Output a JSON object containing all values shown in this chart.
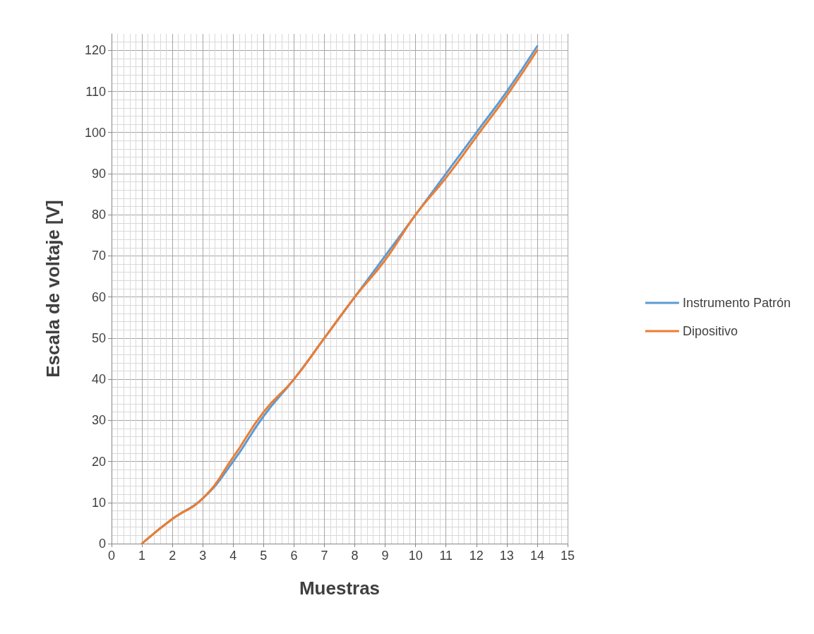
{
  "chart_data": {
    "type": "line",
    "xlabel": "Muestras",
    "ylabel": "Escala de voltaje [V]",
    "x": [
      1,
      2,
      3,
      4,
      5,
      6,
      7,
      8,
      9,
      10,
      11,
      12,
      13,
      14
    ],
    "series": [
      {
        "name": "Instrumento Patrón",
        "color": "#5b9bd5",
        "values": [
          0,
          6,
          11,
          20,
          31,
          40,
          50,
          60,
          70,
          80,
          90,
          100,
          110,
          121
        ]
      },
      {
        "name": "Dipositivo",
        "color": "#ed7d31",
        "values": [
          0,
          6,
          11,
          21,
          32,
          40,
          50,
          60,
          69,
          80,
          89,
          99,
          109,
          120
        ]
      }
    ],
    "xlim": [
      0,
      15
    ],
    "xticks": [
      0,
      1,
      2,
      3,
      4,
      5,
      6,
      7,
      8,
      9,
      10,
      11,
      12,
      13,
      14,
      15
    ],
    "ylim": [
      0,
      124
    ],
    "yticks": [
      0,
      10,
      20,
      30,
      40,
      50,
      60,
      70,
      80,
      90,
      100,
      110,
      120
    ],
    "grid": true,
    "legend": "right",
    "marker": "none",
    "line_style": "solid"
  }
}
